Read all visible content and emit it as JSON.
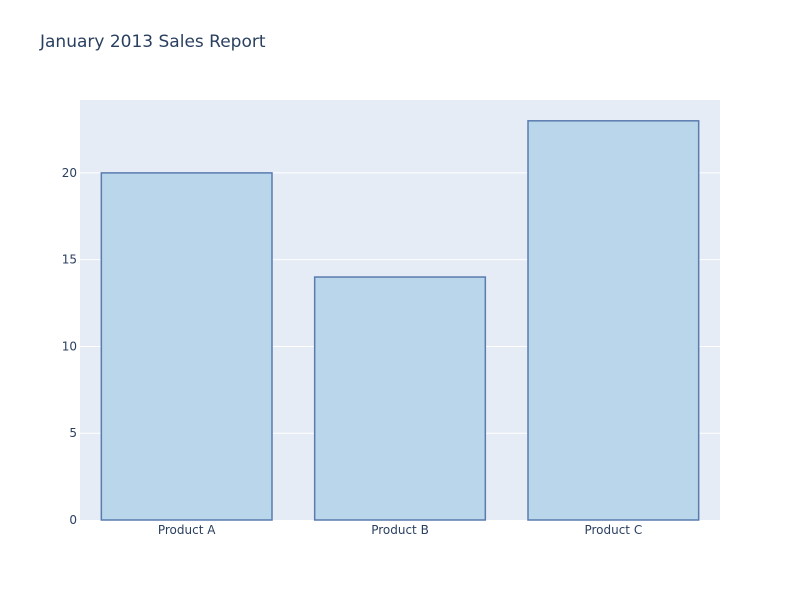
{
  "chart_data": {
    "type": "bar",
    "title": "January 2013 Sales Report",
    "xlabel": "",
    "ylabel": "",
    "categories": [
      "Product A",
      "Product B",
      "Product C"
    ],
    "values": [
      20,
      14,
      23
    ],
    "ylim": [
      0,
      24.2
    ],
    "yticks": [
      0,
      5,
      10,
      15,
      20
    ],
    "grid": true,
    "legend": "none",
    "colors": {
      "plot_background": "#e5ecf6",
      "grid": "#ffffff",
      "bar_fill": "#bad6ea",
      "bar_stroke": "#5a7bb0",
      "text": "#2a3f5f",
      "tick_text": "#2a3f5f"
    }
  }
}
